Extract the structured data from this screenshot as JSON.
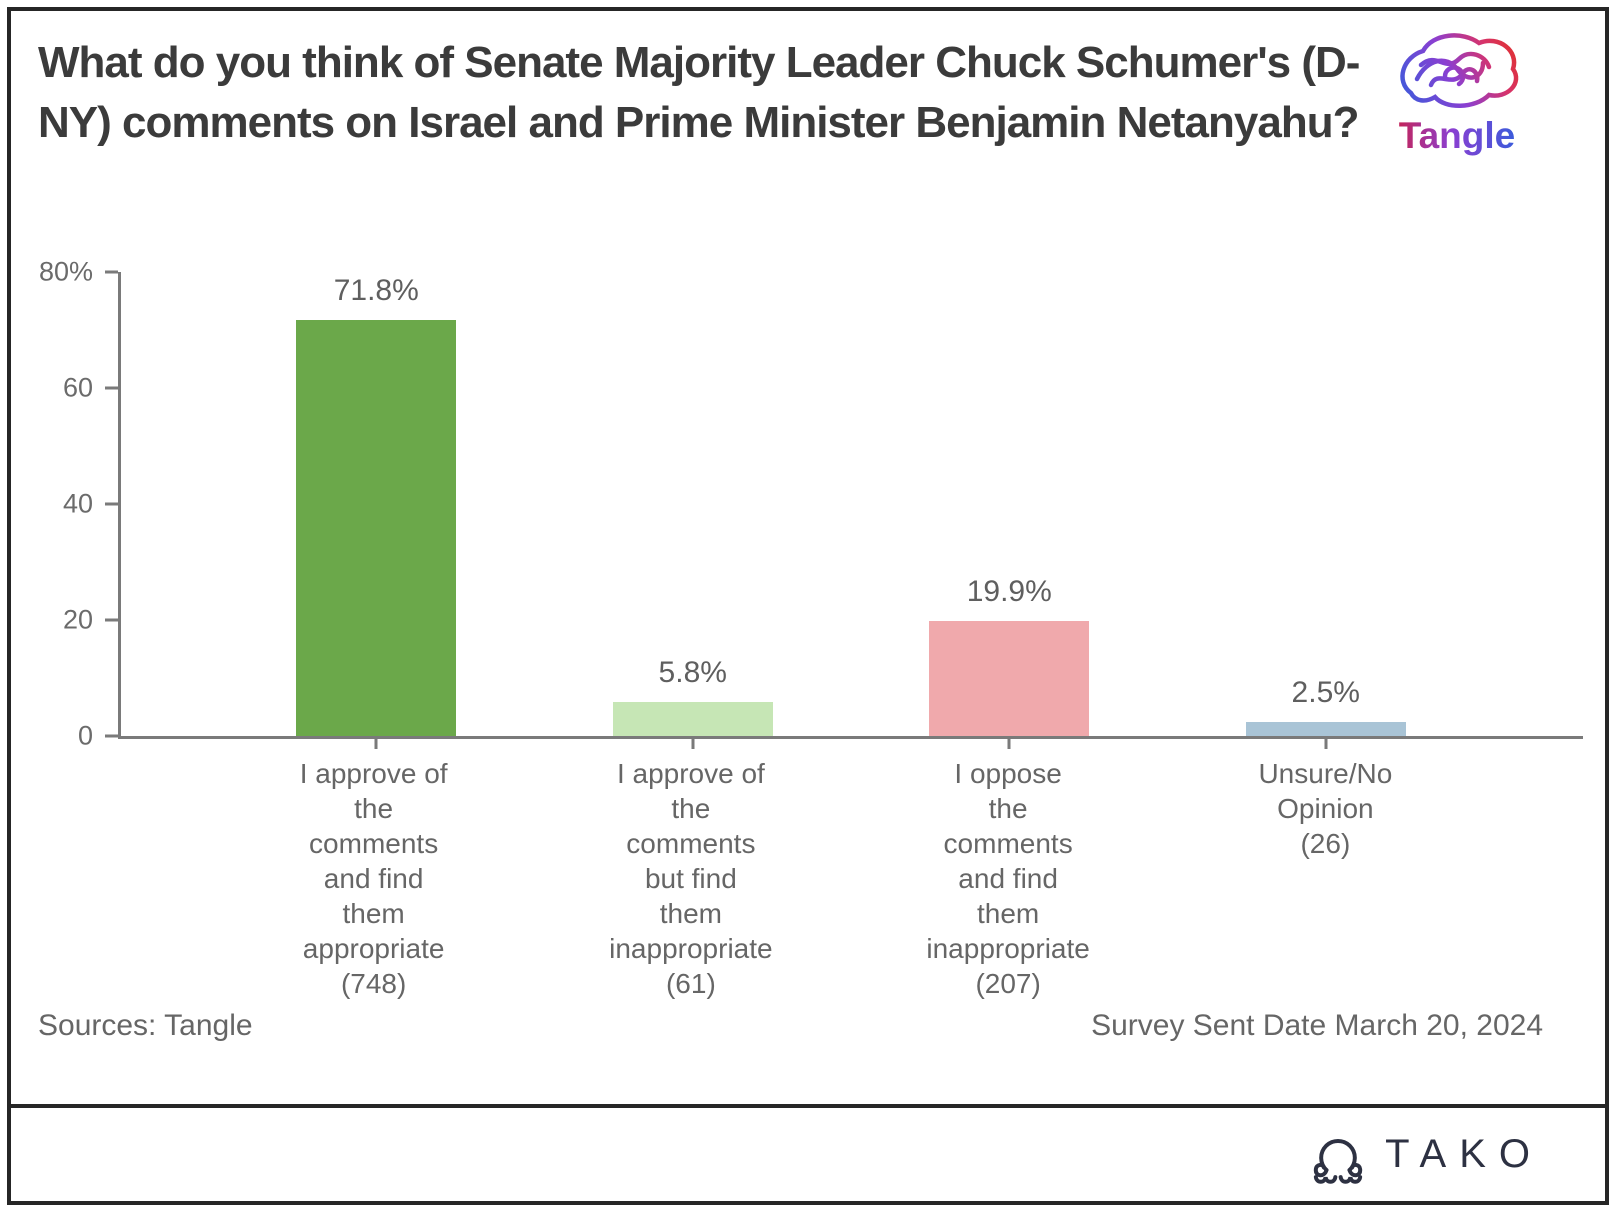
{
  "title": "What do you think of Senate Majority Leader Chuck Schumer's (D-NY) comments on Israel and Prime Minister Benjamin Netanyahu?",
  "brand": {
    "tangle_wordmark": "Tangle",
    "tako_wordmark": "TAKO",
    "tako_color": "#2d3142",
    "tangle_gradient": [
      "#c2255c",
      "#8b3fd1",
      "#3b5bdb"
    ]
  },
  "footer": {
    "sources": "Sources: Tangle",
    "survey_date": "Survey Sent Date March 20, 2024"
  },
  "chart_data": {
    "type": "bar",
    "title": "What do you think of Senate Majority Leader Chuck Schumer's (D-NY) comments on Israel and Prime Minister Benjamin Netanyahu?",
    "categories": [
      "I approve of\nthe\ncomments\nand find\nthem\nappropriate\n(748)",
      "I approve of\nthe\ncomments\nbut find\nthem\ninappropriate\n(61)",
      "I oppose\nthe\ncomments\nand find\nthem\ninappropriate\n(207)",
      "Unsure/No\nOpinion\n(26)"
    ],
    "values": [
      71.8,
      5.8,
      19.9,
      2.5
    ],
    "value_labels": [
      "71.8%",
      "5.8%",
      "19.9%",
      "2.5%"
    ],
    "counts": [
      748,
      61,
      207,
      26
    ],
    "bar_colors": [
      "#6ba84a",
      "#c6e6b5",
      "#f0a9ac",
      "#a9c4d6"
    ],
    "xlabel": "",
    "ylabel": "",
    "ylim": [
      0,
      80
    ],
    "yticks": [
      {
        "value": 80,
        "label": "80%"
      },
      {
        "value": 60,
        "label": "60"
      },
      {
        "value": 40,
        "label": "40"
      },
      {
        "value": 20,
        "label": "20"
      },
      {
        "value": 0,
        "label": "0"
      }
    ],
    "grid": false,
    "legend_position": "none",
    "axis_color": "#7a7a7a"
  }
}
